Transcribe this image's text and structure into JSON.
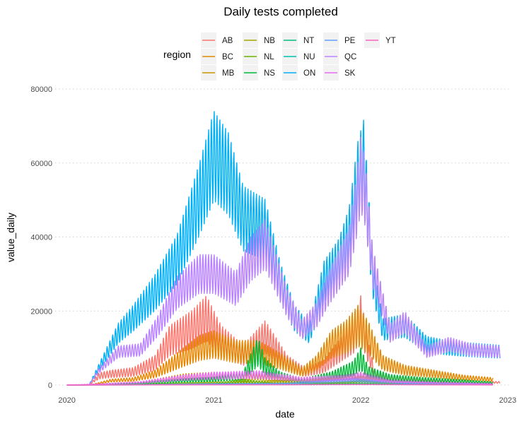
{
  "chart_data": {
    "type": "line",
    "title": "Daily tests completed",
    "xlabel": "date",
    "ylabel": "value_daily",
    "xlim": [
      2019.92,
      2023.02
    ],
    "ylim": [
      0,
      80000
    ],
    "x_ticks": [
      2020,
      2021,
      2022,
      2023
    ],
    "x_tick_labels": [
      "2020",
      "2021",
      "2022",
      "2023"
    ],
    "y_ticks": [
      0,
      20000,
      40000,
      60000,
      80000
    ],
    "y_tick_labels": [
      "0",
      "20000",
      "40000",
      "60000",
      "80000"
    ],
    "grid": true,
    "legend": {
      "title": "region",
      "position": "top"
    },
    "series": [
      {
        "name": "AB",
        "color": "#F8766D",
        "weekly_amp": 0.35,
        "x": [
          2020.0,
          2020.15,
          2020.22,
          2020.3,
          2020.45,
          2020.6,
          2020.7,
          2020.85,
          2020.95,
          2021.05,
          2021.2,
          2021.35,
          2021.5,
          2021.62,
          2021.75,
          2021.85,
          2021.95,
          2022.0,
          2022.05,
          2022.1,
          2022.2,
          2022.4,
          2022.6,
          2022.8,
          2022.95
        ],
        "y": [
          0,
          0,
          2500,
          3000,
          3500,
          6000,
          12000,
          15000,
          18000,
          12000,
          8000,
          13000,
          6000,
          3500,
          5000,
          9000,
          13000,
          18000,
          9000,
          2500,
          1800,
          1200,
          1000,
          800,
          700
        ]
      },
      {
        "name": "BC",
        "color": "#E58700",
        "weekly_amp": 0.35,
        "x": [
          2020.0,
          2020.15,
          2020.22,
          2020.3,
          2020.45,
          2020.6,
          2020.75,
          2020.9,
          2021.0,
          2021.15,
          2021.3,
          2021.45,
          2021.6,
          2021.7,
          2021.8,
          2021.9,
          2021.98,
          2022.05,
          2022.15,
          2022.3,
          2022.5,
          2022.7,
          2022.9
        ],
        "y": [
          0,
          0,
          500,
          1200,
          1500,
          3000,
          6500,
          10000,
          11000,
          9000,
          9000,
          6500,
          3500,
          6000,
          11000,
          13000,
          16000,
          13000,
          6000,
          4000,
          3000,
          2000,
          1500
        ]
      },
      {
        "name": "MB",
        "color": "#C99800",
        "weekly_amp": 0.4,
        "x": [
          2020.0,
          2020.2,
          2020.5,
          2020.8,
          2021.0,
          2021.3,
          2021.6,
          2021.9,
          2022.0,
          2022.2,
          2022.5,
          2022.9
        ],
        "y": [
          0,
          100,
          600,
          2200,
          2500,
          2200,
          1200,
          1500,
          2500,
          800,
          500,
          300
        ]
      },
      {
        "name": "NB",
        "color": "#A3A500",
        "weekly_amp": 0.4,
        "x": [
          2020.0,
          2020.2,
          2020.6,
          2021.0,
          2021.4,
          2021.8,
          2022.0,
          2022.3,
          2022.9
        ],
        "y": [
          0,
          80,
          300,
          600,
          900,
          1200,
          1800,
          600,
          200
        ]
      },
      {
        "name": "NL",
        "color": "#6BB100",
        "weekly_amp": 0.4,
        "x": [
          2020.0,
          2020.2,
          2020.6,
          2021.0,
          2021.2,
          2021.4,
          2021.8,
          2022.0,
          2022.3,
          2022.9
        ],
        "y": [
          0,
          50,
          200,
          300,
          1200,
          400,
          500,
          800,
          300,
          100
        ]
      },
      {
        "name": "NS",
        "color": "#00BA38",
        "weekly_amp": 0.45,
        "x": [
          2020.0,
          2020.2,
          2020.5,
          2020.8,
          2021.0,
          2021.2,
          2021.3,
          2021.35,
          2021.45,
          2021.6,
          2021.8,
          2021.95,
          2022.0,
          2022.05,
          2022.2,
          2022.4,
          2022.7,
          2022.9
        ],
        "y": [
          0,
          100,
          500,
          1200,
          1500,
          2500,
          9000,
          5000,
          2500,
          1200,
          2500,
          4500,
          7000,
          3500,
          2000,
          1500,
          1000,
          600
        ]
      },
      {
        "name": "NT",
        "color": "#00BF7D",
        "weekly_amp": 0.4,
        "x": [
          2020.0,
          2020.2,
          2020.6,
          2021.0,
          2021.5,
          2022.0,
          2022.5,
          2022.9
        ],
        "y": [
          0,
          20,
          60,
          100,
          120,
          300,
          100,
          50
        ]
      },
      {
        "name": "NU",
        "color": "#00C0AF",
        "weekly_amp": 0.4,
        "x": [
          2020.0,
          2020.2,
          2020.6,
          2021.0,
          2021.5,
          2022.0,
          2022.5,
          2022.9
        ],
        "y": [
          0,
          10,
          50,
          80,
          100,
          200,
          80,
          40
        ]
      },
      {
        "name": "ON",
        "color": "#00B0F6",
        "weekly_amp": 0.2,
        "x": [
          2020.0,
          2020.15,
          2020.25,
          2020.35,
          2020.45,
          2020.6,
          2020.75,
          2020.9,
          2021.0,
          2021.1,
          2021.2,
          2021.35,
          2021.45,
          2021.55,
          2021.65,
          2021.75,
          2021.85,
          2021.92,
          2021.98,
          2022.02,
          2022.08,
          2022.15,
          2022.3,
          2022.45,
          2022.6,
          2022.75,
          2022.95
        ],
        "y": [
          0,
          0,
          7000,
          14000,
          18000,
          25000,
          34000,
          50000,
          62000,
          57000,
          45000,
          42000,
          28000,
          18000,
          14000,
          28000,
          33000,
          40000,
          55000,
          60000,
          30000,
          15000,
          16000,
          11000,
          10000,
          9500,
          9000
        ]
      },
      {
        "name": "PE",
        "color": "#619CFF",
        "weekly_amp": 0.4,
        "x": [
          2020.0,
          2020.2,
          2020.6,
          2021.0,
          2021.5,
          2021.95,
          2022.3,
          2022.9
        ],
        "y": [
          0,
          30,
          150,
          300,
          400,
          1300,
          500,
          200
        ]
      },
      {
        "name": "QC",
        "color": "#B983FF",
        "weekly_amp": 0.18,
        "x": [
          2020.0,
          2020.15,
          2020.22,
          2020.35,
          2020.5,
          2020.62,
          2020.75,
          2020.9,
          2021.0,
          2021.15,
          2021.25,
          2021.35,
          2021.5,
          2021.6,
          2021.7,
          2021.78,
          2021.85,
          2021.92,
          2021.97,
          2022.0,
          2022.03,
          2022.08,
          2022.2,
          2022.3,
          2022.45,
          2022.6,
          2022.75,
          2022.95
        ],
        "y": [
          0,
          0,
          4000,
          9000,
          9500,
          16000,
          25000,
          30000,
          30000,
          26000,
          34000,
          38000,
          22000,
          15000,
          19000,
          26000,
          31000,
          36000,
          48000,
          57000,
          52000,
          32000,
          14000,
          17000,
          9000,
          11000,
          9500,
          9000
        ]
      },
      {
        "name": "SK",
        "color": "#E76BF3",
        "weekly_amp": 0.4,
        "x": [
          2020.0,
          2020.2,
          2020.5,
          2020.8,
          2021.0,
          2021.3,
          2021.6,
          2021.9,
          2022.0,
          2022.2,
          2022.5,
          2022.9
        ],
        "y": [
          0,
          200,
          700,
          2000,
          2500,
          2800,
          1500,
          2000,
          2500,
          1000,
          600,
          300
        ]
      },
      {
        "name": "YT",
        "color": "#FF62BC",
        "weekly_amp": 0.4,
        "x": [
          2020.0,
          2020.2,
          2020.6,
          2021.0,
          2021.5,
          2022.0,
          2022.5,
          2022.9
        ],
        "y": [
          0,
          10,
          40,
          60,
          80,
          150,
          60,
          30
        ]
      }
    ]
  }
}
